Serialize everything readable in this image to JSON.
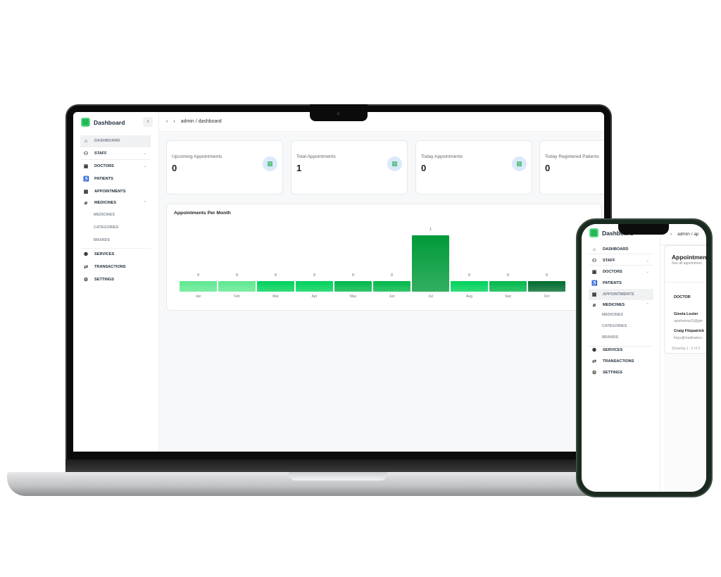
{
  "app": {
    "title": "Dashboard"
  },
  "breadcrumb": {
    "user": "admin",
    "page": "/ dashboard",
    "phone_page": "/ ap"
  },
  "sidebar": {
    "items": [
      {
        "label": "DASHBOARD",
        "icon": "home-icon",
        "active": true
      },
      {
        "label": "STAFF",
        "icon": "users-icon",
        "chevron": "down"
      },
      {
        "label": "DOCTORS",
        "icon": "medical-bag-icon",
        "chevron": "down"
      },
      {
        "label": "PATIENTS",
        "icon": "wheelchair-icon"
      },
      {
        "label": "APPOINTMENTS",
        "icon": "calendar-icon"
      },
      {
        "label": "MEDICINES",
        "icon": "pill-icon",
        "chevron": "up"
      },
      {
        "label": "SERVICES",
        "icon": "user-cog-icon"
      },
      {
        "label": "TRANSACTIONS",
        "icon": "transfer-icon"
      },
      {
        "label": "SETTINGS",
        "icon": "gear-icon"
      }
    ],
    "sub_items": [
      "MEDICINES",
      "CATEGORIES",
      "BRANDS"
    ]
  },
  "stats": [
    {
      "title": "Upcoming Appointments",
      "value": "0"
    },
    {
      "title": "Total Appointments",
      "value": "1"
    },
    {
      "title": "Today Appointments",
      "value": "0"
    },
    {
      "title": "Today Registered Patients",
      "value": "0"
    }
  ],
  "colors": {
    "accent": "#22b857",
    "icon_bg": "#dbe9fb"
  },
  "chart_data": {
    "type": "bar",
    "title": "Appointments Per Month",
    "categories": [
      "Jan",
      "Feb",
      "Mar",
      "Apr",
      "May",
      "Jun",
      "Jul",
      "Aug",
      "Sep",
      "Oct"
    ],
    "values": [
      0,
      0,
      0,
      0,
      0,
      0,
      1,
      0,
      0,
      0
    ],
    "data_labels": [
      "0",
      "0",
      "0",
      "0",
      "0",
      "0",
      "1",
      "0",
      "0",
      "0"
    ],
    "colors": [
      "#5ee88f",
      "#5ee88f",
      "#00d25a",
      "#00d25a",
      "#00b84a",
      "#00b84a",
      "#009a3a",
      "#00d25a",
      "#00b84a",
      "#006b2e"
    ],
    "ylim": [
      0,
      1
    ],
    "grid": false
  },
  "phone": {
    "appointments_title": "Appointments",
    "appointments_subtitle": "See all appointmen",
    "table_header": "DOCTOR",
    "rows": [
      {
        "name": "Gisela Lester",
        "email": "opisharma15@gm"
      },
      {
        "name": "Craig Fitzpatrick",
        "email": "fotys@mailinator.c"
      }
    ],
    "footer": "Showing 1 - 2 of 2",
    "active_item": "APPOINTMENTS"
  }
}
